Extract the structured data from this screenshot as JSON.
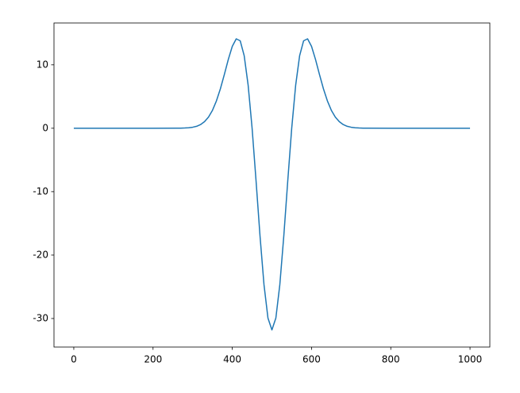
{
  "chart_data": {
    "type": "line",
    "x": [
      0,
      100,
      200,
      260,
      270,
      280,
      290,
      300,
      310,
      320,
      330,
      340,
      350,
      360,
      370,
      380,
      390,
      400,
      410,
      420,
      430,
      440,
      450,
      460,
      470,
      480,
      490,
      500,
      510,
      520,
      530,
      540,
      550,
      560,
      570,
      580,
      590,
      600,
      610,
      620,
      630,
      640,
      650,
      660,
      670,
      680,
      690,
      700,
      710,
      720,
      730,
      740,
      800,
      900,
      1000
    ],
    "series": [
      {
        "color": "#1f77b4",
        "values": [
          0,
          0,
          0,
          0.01,
          0.02,
          0.04,
          0.08,
          0.16,
          0.31,
          0.58,
          1.04,
          1.76,
          2.83,
          4.32,
          6.23,
          8.49,
          10.86,
          12.91,
          14.1,
          13.79,
          11.46,
          6.81,
          0,
          -8.31,
          -17.0,
          -24.66,
          -29.92,
          -31.8,
          -29.92,
          -24.66,
          -17.0,
          -8.31,
          0,
          6.81,
          11.46,
          13.79,
          14.1,
          12.91,
          10.86,
          8.49,
          6.23,
          4.32,
          2.83,
          1.76,
          1.04,
          0.58,
          0.31,
          0.16,
          0.08,
          0.04,
          0.02,
          0.01,
          0,
          0,
          0
        ]
      }
    ],
    "xlim": [
      -50,
      1050
    ],
    "ylim": [
      -34.5,
      16.6
    ],
    "xticks": [
      0,
      200,
      400,
      600,
      800,
      1000
    ],
    "yticks": [
      -30,
      -20,
      -10,
      0,
      10
    ]
  }
}
